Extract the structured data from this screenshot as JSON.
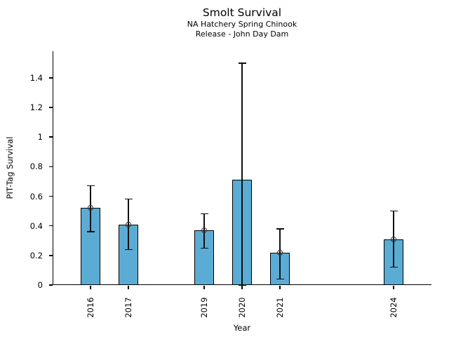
{
  "chart_data": {
    "type": "bar",
    "title": "Smolt Survival",
    "subtitle_lines": [
      "NA Hatchery Spring Chinook",
      "Release - John Day Dam"
    ],
    "xlabel": "Year",
    "ylabel": "PIT-Tag Survival",
    "xlim": [
      2015,
      2025
    ],
    "ylim": [
      0,
      1.58
    ],
    "grid": false,
    "legend": null,
    "bar_color": "#5BACD5",
    "bar_edge_color": "#000000",
    "error_bar_color": "#111111",
    "marker_style": "open-circle",
    "yticks": [
      {
        "value": 0,
        "label": "0"
      },
      {
        "value": 0.2,
        "label": "0.2"
      },
      {
        "value": 0.4,
        "label": "0.4"
      },
      {
        "value": 0.6,
        "label": "0.6"
      },
      {
        "value": 0.8,
        "label": "0.8"
      },
      {
        "value": 1,
        "label": "1"
      },
      {
        "value": 1.2,
        "label": "1.2"
      },
      {
        "value": 1.4,
        "label": "1.4"
      }
    ],
    "points": [
      {
        "year": 2016,
        "label": "2016",
        "value": 0.52,
        "err_low": 0.36,
        "err_high": 0.67,
        "marker": true
      },
      {
        "year": 2017,
        "label": "2017",
        "value": 0.41,
        "err_low": 0.24,
        "err_high": 0.58,
        "marker": true
      },
      {
        "year": 2019,
        "label": "2019",
        "value": 0.37,
        "err_low": 0.25,
        "err_high": 0.48,
        "marker": true
      },
      {
        "year": 2020,
        "label": "2020",
        "value": 0.71,
        "err_low": 0.0,
        "err_high": 1.5,
        "marker": false
      },
      {
        "year": 2021,
        "label": "2021",
        "value": 0.22,
        "err_low": 0.04,
        "err_high": 0.38,
        "marker": true
      },
      {
        "year": 2024,
        "label": "2024",
        "value": 0.31,
        "err_low": 0.12,
        "err_high": 0.5,
        "marker": true
      }
    ]
  }
}
